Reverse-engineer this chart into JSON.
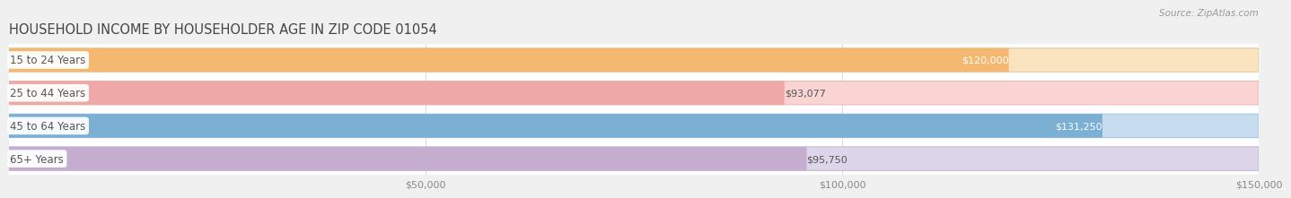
{
  "title": "HOUSEHOLD INCOME BY HOUSEHOLDER AGE IN ZIP CODE 01054",
  "source": "Source: ZipAtlas.com",
  "categories": [
    "15 to 24 Years",
    "25 to 44 Years",
    "45 to 64 Years",
    "65+ Years"
  ],
  "values": [
    120000,
    93077,
    131250,
    95750
  ],
  "bar_colors": [
    "#F5B870",
    "#EFA8A8",
    "#7BAFD4",
    "#C4ADCE"
  ],
  "bar_bg_colors": [
    "#FAE3BF",
    "#FAD3D3",
    "#C8DCF0",
    "#DDD5EA"
  ],
  "bar_border_colors": [
    "#E8C898",
    "#E8BBBB",
    "#A8C8E8",
    "#C8B8D8"
  ],
  "value_inside": [
    true,
    false,
    true,
    false
  ],
  "value_labels": [
    "$120,000",
    "$93,077",
    "$131,250",
    "$95,750"
  ],
  "xlim_min": 0,
  "xlim_max": 150000,
  "xticks": [
    50000,
    100000,
    150000
  ],
  "xtick_labels": [
    "$50,000",
    "$100,000",
    "$150,000"
  ],
  "bg_color": "#f0f0f0",
  "plot_bg_color": "#ffffff",
  "grid_color": "#dddddd",
  "title_color": "#444444",
  "source_color": "#999999",
  "label_text_color": "#555555",
  "val_inside_color": "#ffffff",
  "val_outside_color": "#555555"
}
